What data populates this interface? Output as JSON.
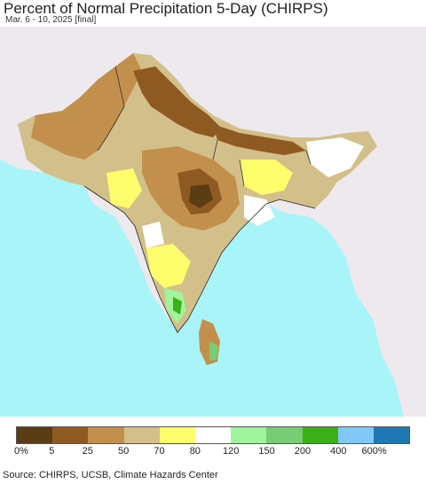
{
  "title": "Percent of Normal Precipitation 5-Day (CHIRPS)",
  "subtitle": "Mar. 6 - 10, 2025 [final]",
  "source": "Source: CHIRPS, UCSB, Climate Hazards Center",
  "legend": {
    "colors": [
      "#5a3d14",
      "#8f5a22",
      "#c38f4c",
      "#d3bf8a",
      "#fefe6c",
      "#ffffff",
      "#a0f49c",
      "#78cc74",
      "#3cb018",
      "#80c8f8",
      "#1e78b4"
    ],
    "labels": [
      "0%",
      "5",
      "25",
      "50",
      "70",
      "80",
      "120",
      "150",
      "200",
      "400",
      "600%"
    ]
  },
  "map_colors": {
    "ocean": "#a8f4f8",
    "land_outside": "#ede9ef",
    "dry_brown": "#8f5a22",
    "tan": "#c38f4c",
    "light_tan": "#d3bf8a",
    "yellow": "#fefe6c",
    "white": "#ffffff",
    "light_green": "#a0f49c",
    "green": "#3cb018"
  }
}
